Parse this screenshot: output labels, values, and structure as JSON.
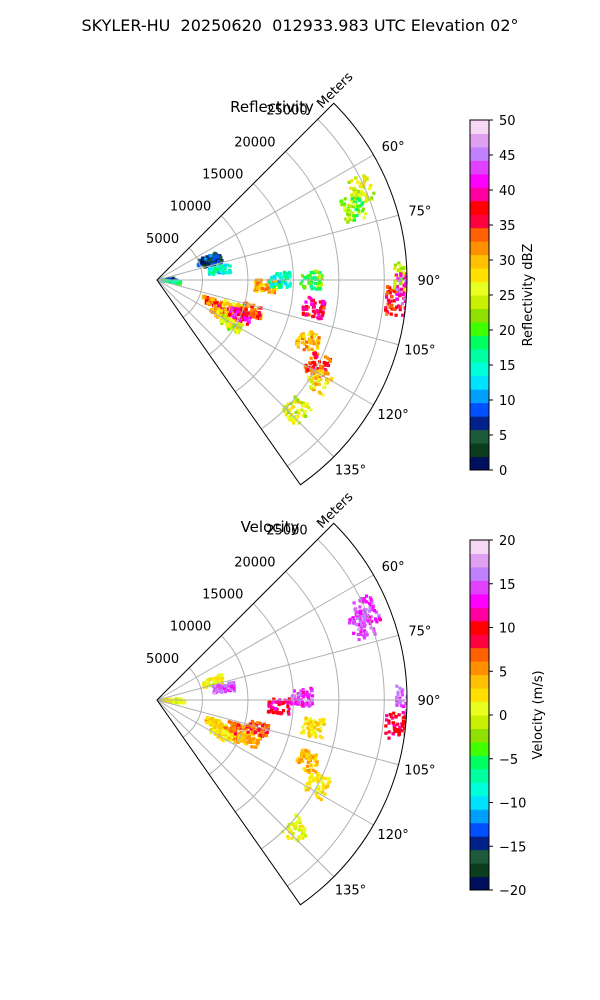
{
  "title": "SKYLER-HU  20250620  012933.983 UTC Elevation 02°",
  "charts": [
    {
      "id": "refl",
      "title": "Reflectivity",
      "range_unit": "Meters",
      "range_ticks": [
        "5000",
        "10000",
        "15000",
        "20000",
        "25000"
      ],
      "azimuth_ticks": [
        "60°",
        "75°",
        "90°",
        "105°",
        "120°",
        "135°"
      ],
      "colorbar": {
        "label": "Reflectivity dBZ",
        "ticks": [
          "0",
          "5",
          "10",
          "15",
          "20",
          "25",
          "30",
          "35",
          "40",
          "45",
          "50"
        ],
        "min": 0,
        "max": 50,
        "colors": [
          "#000f5c",
          "#0a3d1e",
          "#1d5a39",
          "#00208a",
          "#0050ff",
          "#00a0ff",
          "#00e0ff",
          "#00ffd8",
          "#00ffa0",
          "#00ff60",
          "#40ff00",
          "#90e000",
          "#c8f000",
          "#e8ff20",
          "#ffe000",
          "#ffc000",
          "#ff9000",
          "#ff6000",
          "#ff0040",
          "#ff0000",
          "#ff00a0",
          "#ff00ff",
          "#e040ff",
          "#c080ff",
          "#e0a0f0",
          "#f6d8f6"
        ]
      }
    },
    {
      "id": "vel",
      "title": "Velocity",
      "range_unit": "Meters",
      "range_ticks": [
        "5000",
        "10000",
        "15000",
        "20000",
        "25000"
      ],
      "azimuth_ticks": [
        "60°",
        "75°",
        "90°",
        "105°",
        "120°",
        "135°"
      ],
      "colorbar": {
        "label": "Velocity (m/s)",
        "ticks": [
          "−20",
          "−15",
          "−10",
          "−5",
          "0",
          "5",
          "10",
          "15",
          "20"
        ],
        "min": -20,
        "max": 20,
        "colors": [
          "#000f5c",
          "#0a3d1e",
          "#1d5a39",
          "#00208a",
          "#0050ff",
          "#00a0ff",
          "#00e0ff",
          "#00ffd8",
          "#00ffa0",
          "#00ff60",
          "#40ff00",
          "#90e000",
          "#c8f000",
          "#e8ff20",
          "#ffe000",
          "#ffc000",
          "#ff9000",
          "#ff6000",
          "#ff0040",
          "#ff0000",
          "#ff00a0",
          "#ff00ff",
          "#e040ff",
          "#c080ff",
          "#e0a0f0",
          "#f6d8f6"
        ]
      }
    }
  ],
  "chart_data": [
    {
      "type": "heatmap",
      "subtype": "radar-ppi-sector",
      "title": "Reflectivity",
      "radial_unit": "Meters",
      "range_ticks": [
        5000,
        10000,
        15000,
        20000,
        25000
      ],
      "range_max": 29000,
      "azimuth_range_deg": [
        45,
        145
      ],
      "azimuth_ticks_deg": [
        60,
        75,
        90,
        105,
        120,
        135
      ],
      "grid": true,
      "colorbar": {
        "label": "Reflectivity dBZ",
        "min": 0,
        "max": 50
      },
      "echo_regions": [
        {
          "az": 87,
          "rng": 800,
          "value": 8
        },
        {
          "az": 92,
          "rng": 1000,
          "value": 8
        },
        {
          "az": 97,
          "rng": 1500,
          "value": 18
        },
        {
          "az": 68,
          "rng": 6000,
          "value": 7
        },
        {
          "az": 72,
          "rng": 6500,
          "value": 5
        },
        {
          "az": 81,
          "rng": 7000,
          "value": 15
        },
        {
          "az": 112,
          "rng": 6500,
          "value": 33
        },
        {
          "az": 115,
          "rng": 8500,
          "value": 38
        },
        {
          "az": 110,
          "rng": 9000,
          "value": 28
        },
        {
          "az": 118,
          "rng": 8000,
          "value": 30
        },
        {
          "az": 113,
          "rng": 10000,
          "value": 40
        },
        {
          "az": 108,
          "rng": 11000,
          "value": 34
        },
        {
          "az": 121,
          "rng": 9500,
          "value": 25
        },
        {
          "az": 93,
          "rng": 12000,
          "value": 30
        },
        {
          "az": 90,
          "rng": 13500,
          "value": 15
        },
        {
          "az": 90,
          "rng": 17000,
          "value": 20
        },
        {
          "az": 100,
          "rng": 17500,
          "value": 38
        },
        {
          "az": 112,
          "rng": 18000,
          "value": 30
        },
        {
          "az": 118,
          "rng": 20000,
          "value": 35
        },
        {
          "az": 122,
          "rng": 21000,
          "value": 28
        },
        {
          "az": 133,
          "rng": 21000,
          "value": 25
        },
        {
          "az": 66,
          "rng": 24500,
          "value": 25
        },
        {
          "az": 70,
          "rng": 23000,
          "value": 22
        },
        {
          "az": 95,
          "rng": 26500,
          "value": 36
        },
        {
          "az": 89,
          "rng": 27300,
          "value": 25
        },
        {
          "az": 92,
          "rng": 27500,
          "value": 42
        }
      ]
    },
    {
      "type": "heatmap",
      "subtype": "radar-ppi-sector",
      "title": "Velocity",
      "radial_unit": "Meters",
      "range_ticks": [
        5000,
        10000,
        15000,
        20000,
        25000
      ],
      "range_max": 29000,
      "azimuth_range_deg": [
        45,
        145
      ],
      "azimuth_ticks_deg": [
        60,
        75,
        90,
        105,
        120,
        135
      ],
      "grid": true,
      "colorbar": {
        "label": "Velocity (m/s)",
        "min": -20,
        "max": 20
      },
      "echo_regions": [
        {
          "az": 90,
          "rng": 1500,
          "value": 1
        },
        {
          "az": 95,
          "rng": 2000,
          "value": 1
        },
        {
          "az": 72,
          "rng": 6500,
          "value": 1
        },
        {
          "az": 80,
          "rng": 7500,
          "value": 15
        },
        {
          "az": 112,
          "rng": 7000,
          "value": 3
        },
        {
          "az": 115,
          "rng": 9000,
          "value": 5
        },
        {
          "az": 110,
          "rng": 9500,
          "value": 6
        },
        {
          "az": 118,
          "rng": 8000,
          "value": 2
        },
        {
          "az": 113,
          "rng": 11000,
          "value": 4
        },
        {
          "az": 106,
          "rng": 11500,
          "value": 7
        },
        {
          "az": 93,
          "rng": 13500,
          "value": 11
        },
        {
          "az": 89,
          "rng": 16000,
          "value": 14
        },
        {
          "az": 100,
          "rng": 17500,
          "value": 2
        },
        {
          "az": 112,
          "rng": 18000,
          "value": 4
        },
        {
          "az": 118,
          "rng": 20000,
          "value": 2
        },
        {
          "az": 133,
          "rng": 21000,
          "value": 1
        },
        {
          "az": 67,
          "rng": 25000,
          "value": 14
        },
        {
          "az": 70,
          "rng": 24000,
          "value": 15
        },
        {
          "az": 96,
          "rng": 26500,
          "value": 10
        },
        {
          "az": 90,
          "rng": 27500,
          "value": 15
        }
      ]
    }
  ]
}
